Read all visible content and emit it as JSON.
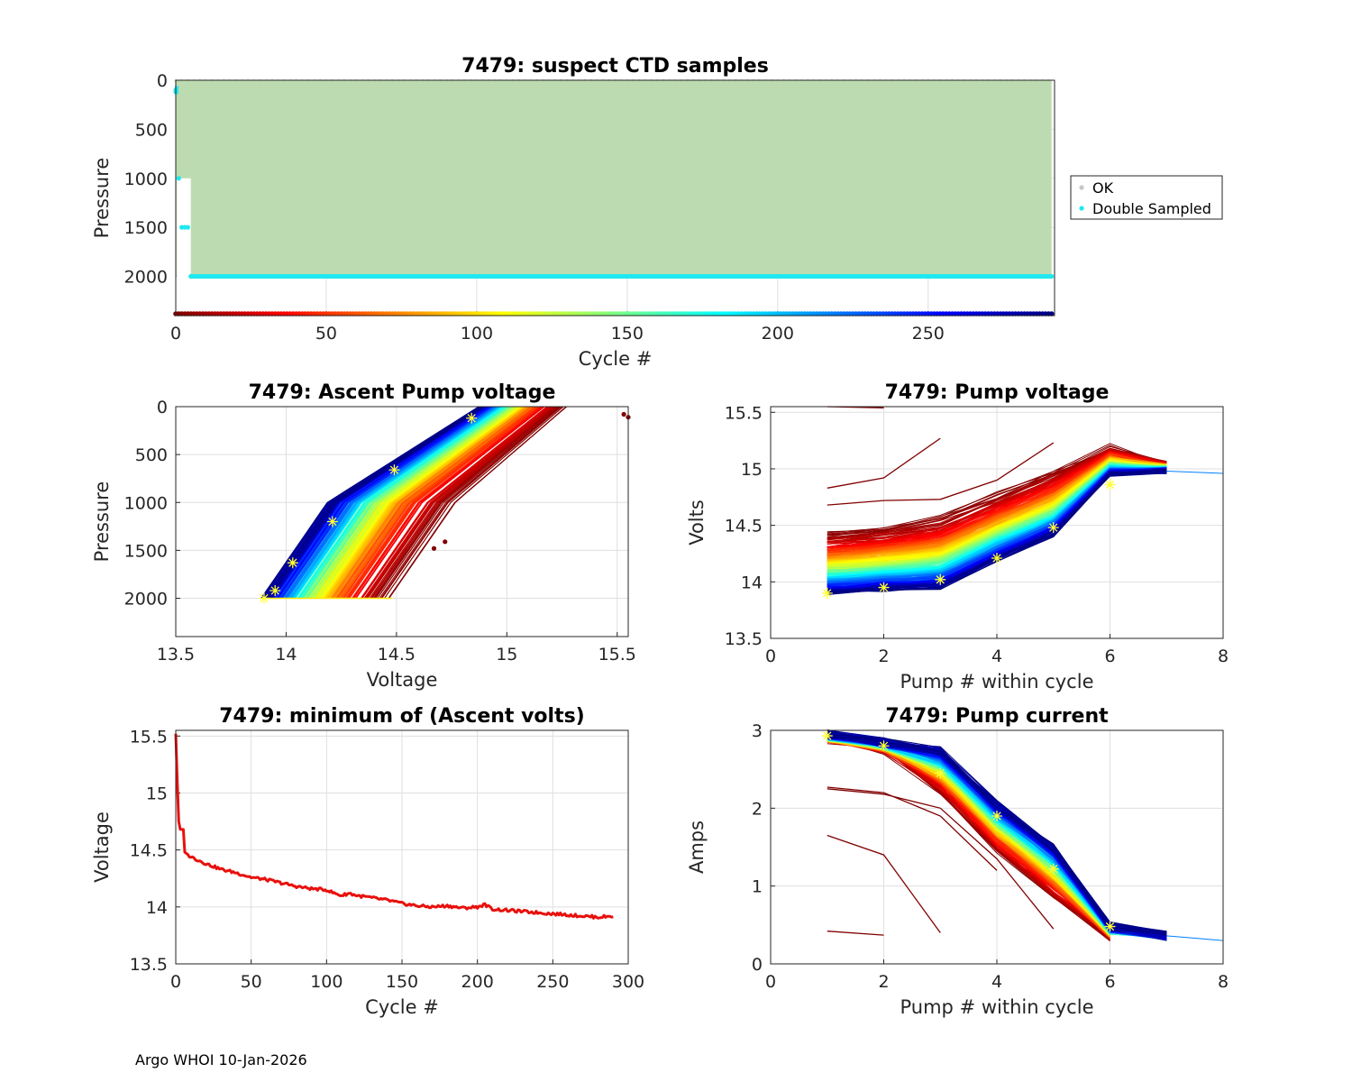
{
  "footer": "Argo WHOI 10-Jan-2026",
  "colors": {
    "ok": "#bddbb0",
    "double": "#1fe8f0",
    "min_line": "#e8100c",
    "star": "#ffff33"
  },
  "chart_data": [
    {
      "id": "p1",
      "type": "scatter",
      "title": "7479: suspect CTD samples",
      "xlabel": "Cycle #",
      "ylabel": "Pressure",
      "xlim": [
        0,
        292
      ],
      "ylim": [
        2400,
        0
      ],
      "xticks": [
        0,
        50,
        100,
        150,
        200,
        250
      ],
      "yticks": [
        0,
        500,
        1000,
        1500,
        2000
      ],
      "legend": [
        "OK",
        "Double Sampled"
      ],
      "legend_position": "outside-right",
      "series": [
        {
          "name": "OK",
          "x_range": [
            0,
            291
          ],
          "pressure_range": [
            5,
            2000
          ]
        },
        {
          "name": "Double Sampled",
          "points": [
            [
              0,
              100
            ],
            [
              0,
              120
            ],
            [
              1,
              1000
            ],
            [
              2,
              1500
            ],
            [
              3,
              1500
            ],
            [
              4,
              1500
            ],
            [
              5,
              2000
            ],
            [
              291,
              2000
            ]
          ]
        },
        {
          "name": "Cycle colour strip",
          "pressure": 2400,
          "x_range": [
            0,
            291
          ]
        }
      ]
    },
    {
      "id": "p2",
      "type": "line",
      "title": "7479: Ascent Pump voltage",
      "xlabel": "Voltage",
      "ylabel": "Pressure",
      "xlim": [
        13.5,
        15.55
      ],
      "ylim": [
        2400,
        0
      ],
      "xticks": [
        13.5,
        14,
        14.5,
        15,
        15.5
      ],
      "yticks": [
        0,
        500,
        1000,
        1500,
        2000
      ],
      "curves": {
        "cycles": 291,
        "bottom_pressure": 2000,
        "newest_profile_voltages_at_2000_1000_0": [
          13.9,
          14.2,
          14.88
        ],
        "oldest_profile_voltages_at_2000_1000_0": [
          14.48,
          14.78,
          15.28
        ]
      },
      "outlier_points": [
        [
          15.53,
          80
        ],
        [
          15.55,
          110
        ],
        [
          14.67,
          1480
        ],
        [
          14.72,
          1410
        ]
      ],
      "star_points": [
        [
          13.9,
          2000
        ],
        [
          13.95,
          1920
        ],
        [
          14.03,
          1630
        ],
        [
          14.21,
          1200
        ],
        [
          14.49,
          660
        ],
        [
          14.84,
          120
        ]
      ]
    },
    {
      "id": "p3",
      "type": "line",
      "title": "7479: Pump voltage",
      "xlabel": "Pump # within cycle",
      "ylabel": "Volts",
      "xlim": [
        0,
        8
      ],
      "ylim": [
        13.5,
        15.55
      ],
      "xticks": [
        0,
        2,
        4,
        6,
        8
      ],
      "yticks": [
        13.5,
        14,
        14.5,
        15,
        15.5
      ],
      "curves": {
        "cycles": 291,
        "oldest_profile": [
          [
            1,
            14.45
          ],
          [
            2,
            14.5
          ],
          [
            3,
            14.6
          ],
          [
            4,
            14.8
          ],
          [
            5,
            15.0
          ],
          [
            6,
            15.2
          ],
          [
            7,
            15.05
          ]
        ],
        "newest_profile": [
          [
            1,
            13.9
          ],
          [
            2,
            13.93
          ],
          [
            3,
            13.95
          ],
          [
            4,
            14.2
          ],
          [
            5,
            14.42
          ],
          [
            6,
            14.95
          ],
          [
            7,
            14.98
          ],
          [
            8,
            14.95
          ]
        ]
      },
      "early_lines": [
        [
          [
            1,
            15.55
          ],
          [
            2,
            15.54
          ]
        ],
        [
          [
            1,
            14.83
          ],
          [
            2,
            14.92
          ],
          [
            3,
            15.27
          ]
        ],
        [
          [
            1,
            14.68
          ],
          [
            2,
            14.72
          ],
          [
            3,
            14.73
          ],
          [
            4,
            14.9
          ],
          [
            5,
            15.23
          ]
        ]
      ],
      "star_points": [
        [
          1,
          13.9
        ],
        [
          2,
          13.95
        ],
        [
          3,
          14.02
        ],
        [
          4,
          14.21
        ],
        [
          5,
          14.48
        ],
        [
          6,
          14.86
        ]
      ]
    },
    {
      "id": "p4",
      "type": "line",
      "title": "7479: minimum of (Ascent volts)",
      "xlabel": "Cycle #",
      "ylabel": "Voltage",
      "xlim": [
        0,
        300
      ],
      "ylim": [
        13.5,
        15.55
      ],
      "xticks": [
        0,
        50,
        100,
        150,
        200,
        250,
        300
      ],
      "yticks": [
        13.5,
        14,
        14.5,
        15,
        15.5
      ],
      "x": [
        0,
        1,
        2,
        3,
        5,
        6,
        10,
        20,
        30,
        40,
        50,
        60,
        70,
        80,
        90,
        100,
        105,
        110,
        115,
        120,
        130,
        140,
        150,
        160,
        170,
        180,
        190,
        200,
        205,
        210,
        220,
        230,
        240,
        250,
        260,
        270,
        280,
        290
      ],
      "y": [
        15.52,
        15.1,
        14.75,
        14.68,
        14.68,
        14.48,
        14.44,
        14.38,
        14.33,
        14.3,
        14.26,
        14.24,
        14.21,
        14.18,
        14.16,
        14.15,
        14.12,
        14.1,
        14.12,
        14.1,
        14.08,
        14.06,
        14.03,
        14.01,
        14.0,
        14.01,
        13.99,
        14.0,
        14.02,
        13.98,
        13.97,
        13.96,
        13.95,
        13.94,
        13.93,
        13.92,
        13.91,
        13.92
      ]
    },
    {
      "id": "p5",
      "type": "line",
      "title": "7479: Pump current",
      "xlabel": "Pump # within cycle",
      "ylabel": "Amps",
      "xlim": [
        0,
        8
      ],
      "ylim": [
        0,
        3
      ],
      "xticks": [
        0,
        2,
        4,
        6,
        8
      ],
      "yticks": [
        0,
        1,
        2,
        3
      ],
      "curves": {
        "cycles": 291,
        "oldest_profile": [
          [
            1,
            2.88
          ],
          [
            2,
            2.75
          ],
          [
            3,
            2.2
          ],
          [
            4,
            1.45
          ],
          [
            5,
            0.85
          ],
          [
            6,
            0.34
          ]
        ],
        "newest_profile": [
          [
            1,
            2.95
          ],
          [
            2,
            2.85
          ],
          [
            3,
            2.75
          ],
          [
            4,
            2.05
          ],
          [
            5,
            1.5
          ],
          [
            6,
            0.48
          ],
          [
            7,
            0.36
          ],
          [
            8,
            0.3
          ]
        ]
      },
      "early_lines": [
        [
          [
            1,
            0.42
          ],
          [
            2,
            0.37
          ]
        ],
        [
          [
            1,
            1.65
          ],
          [
            2,
            1.4
          ],
          [
            3,
            0.4
          ]
        ],
        [
          [
            1,
            2.25
          ],
          [
            2,
            2.18
          ],
          [
            3,
            2.0
          ],
          [
            4,
            1.35
          ],
          [
            5,
            0.45
          ]
        ],
        [
          [
            1,
            2.27
          ],
          [
            2,
            2.2
          ],
          [
            3,
            1.9
          ],
          [
            4,
            1.2
          ]
        ]
      ],
      "star_points": [
        [
          1,
          2.93
        ],
        [
          2,
          2.8
        ],
        [
          3,
          2.45
        ],
        [
          4,
          1.9
        ],
        [
          5,
          1.22
        ],
        [
          6,
          0.48
        ]
      ]
    }
  ]
}
